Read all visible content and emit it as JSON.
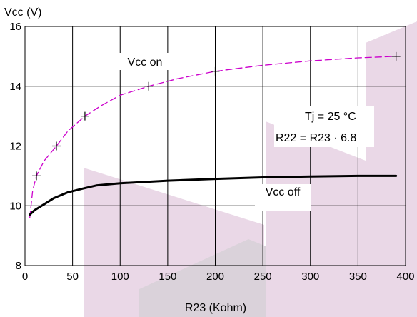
{
  "chart_data": {
    "type": "line",
    "ylabel": "Vcc  (V)",
    "xlabel": "R23 (Kohm)",
    "xlim": [
      0,
      400
    ],
    "ylim": [
      8,
      16
    ],
    "x_ticks": [
      0,
      50,
      100,
      150,
      200,
      250,
      300,
      350,
      400
    ],
    "y_ticks": [
      8,
      10,
      12,
      14,
      16
    ],
    "grid": true,
    "annotations": {
      "tj": "Tj = 25 °C",
      "formula": "R22 = R23 · 6.8"
    },
    "series": [
      {
        "name": "Vcc on",
        "style": "dashed",
        "color": "#cc00cc",
        "x": [
          5,
          8,
          12,
          20,
          33,
          45,
          63,
          80,
          100,
          130,
          160,
          200,
          250,
          300,
          350,
          390
        ],
        "y": [
          9.6,
          10.5,
          11.0,
          11.5,
          12.0,
          12.5,
          13.0,
          13.35,
          13.7,
          14.0,
          14.25,
          14.5,
          14.7,
          14.85,
          14.95,
          15.0
        ]
      },
      {
        "name": "Vcc off",
        "style": "solid",
        "color": "#000000",
        "x": [
          5,
          10,
          20,
          30,
          45,
          60,
          75,
          100,
          150,
          200,
          250,
          300,
          350,
          390
        ],
        "y": [
          9.7,
          9.85,
          10.05,
          10.25,
          10.45,
          10.57,
          10.68,
          10.75,
          10.84,
          10.9,
          10.95,
          10.98,
          11.0,
          11.0
        ]
      }
    ],
    "markers": {
      "x": [
        12,
        33,
        63,
        130,
        200,
        390
      ],
      "y": [
        11.0,
        12.0,
        13.0,
        14.0,
        14.5,
        15.0
      ]
    }
  }
}
